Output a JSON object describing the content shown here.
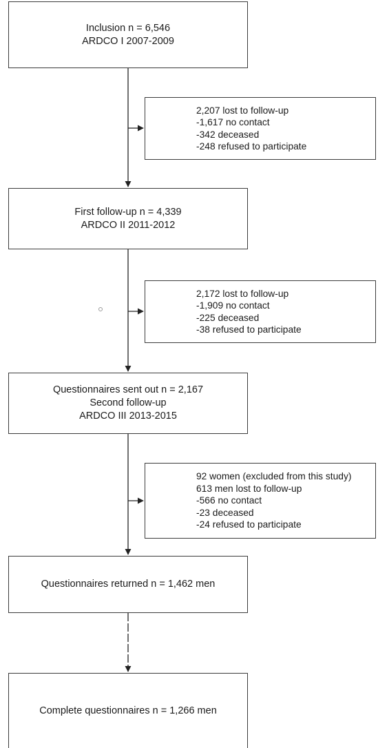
{
  "flowchart": {
    "main_boxes": [
      {
        "lines": [
          "Inclusion n = 6,546",
          "ARDCO I 2007-2009"
        ]
      },
      {
        "lines": [
          "First follow-up n = 4,339",
          "ARDCO II 2011-2012"
        ]
      },
      {
        "lines": [
          "Questionnaires sent out n = 2,167",
          "Second follow-up",
          "ARDCO III 2013-2015"
        ]
      },
      {
        "lines": [
          "Questionnaires returned n = 1,462 men"
        ]
      },
      {
        "lines": [
          "Complete questionnaires n = 1,266 men"
        ]
      }
    ],
    "side_boxes": [
      {
        "lines": [
          "2,207 lost to follow-up",
          "-1,617 no contact",
          "-342 deceased",
          "-248 refused to participate"
        ]
      },
      {
        "lines": [
          "2,172 lost to follow-up",
          "-1,909 no contact",
          "-225 deceased",
          "-38 refused to participate"
        ]
      },
      {
        "lines": [
          "92 women (excluded from this study)",
          "613 men lost to follow-up",
          "-566 no contact",
          "-23 deceased",
          "-24 refused to participate"
        ]
      }
    ]
  },
  "colors": {
    "border": "#3a3a3a",
    "arrow": "#222222",
    "text": "#1a1a1a"
  }
}
